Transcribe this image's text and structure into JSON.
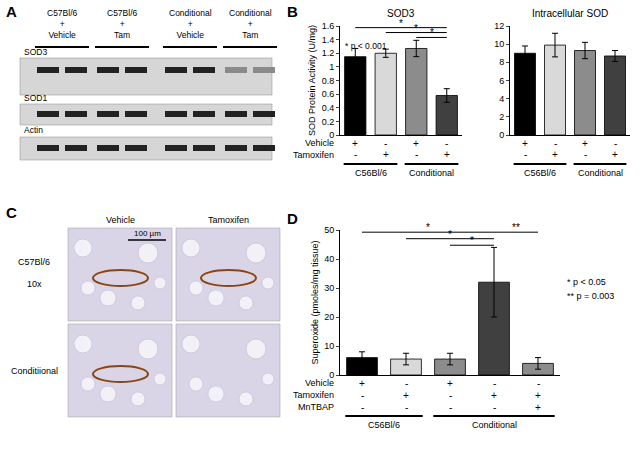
{
  "panel_labels": [
    "A",
    "B",
    "C",
    "D"
  ],
  "blot": {
    "lanes": [
      [
        "C57Bl/6",
        "+",
        "Vehicle"
      ],
      [
        "C57Bl/6",
        "+",
        "Tam"
      ],
      [
        "Conditional",
        "+",
        "Vehicle"
      ],
      [
        "Conditional",
        "+",
        "Tam"
      ]
    ],
    "bands": [
      "SOD3",
      "SOD1",
      "Actin"
    ]
  },
  "histology": {
    "columns": [
      "Vehicle",
      "Tamoxifen"
    ],
    "rows": [
      "C57Bl/6",
      "Conditiional"
    ],
    "magnification": "10x",
    "scale_bar": "100 µm"
  },
  "chart_data": [
    {
      "type": "bar",
      "title": "SOD3",
      "y_label": "SOD Protein Activity (U/mg)",
      "categories": [
        null,
        null,
        null,
        null
      ],
      "values": [
        1.15,
        1.2,
        1.27,
        0.58
      ],
      "errors": [
        0.12,
        0.06,
        0.12,
        0.1
      ],
      "colors": [
        "#000000",
        "#d9d9d9",
        "#8c8c8c",
        "#404040"
      ],
      "ylim": [
        0,
        1.6
      ],
      "yticks": [
        0,
        0.2,
        0.4,
        0.6,
        0.8,
        1,
        1.2,
        1.4,
        1.6
      ],
      "grid": false,
      "tick_labels": "y",
      "treatments": [
        {
          "name": "Vehicle",
          "signs": [
            "+",
            "-",
            "+",
            "-"
          ]
        },
        {
          "name": "Tamoxifen",
          "signs": [
            "-",
            "+",
            "-",
            "+"
          ]
        }
      ],
      "groups": [
        {
          "label": "C56Bl/6",
          "span": [
            0,
            1
          ]
        },
        {
          "label": "Conditional",
          "span": [
            2,
            3
          ]
        }
      ],
      "annotations": [
        "* p < 0.001"
      ],
      "comparisons": [
        {
          "from": 0,
          "to": 3,
          "label": "*"
        },
        {
          "from": 1,
          "to": 3,
          "label": "*"
        },
        {
          "from": 2,
          "to": 3,
          "label": "*"
        }
      ]
    },
    {
      "type": "bar",
      "title": "Intracellular SOD",
      "categories": [
        null,
        null,
        null,
        null
      ],
      "values": [
        9.0,
        9.9,
        9.3,
        8.7
      ],
      "errors": [
        0.8,
        1.3,
        0.9,
        0.6
      ],
      "colors": [
        "#000000",
        "#d9d9d9",
        "#8c8c8c",
        "#404040"
      ],
      "ylim": [
        0,
        12
      ],
      "yticks": [
        0,
        2,
        4,
        6,
        8,
        10,
        12
      ],
      "grid": false,
      "tick_labels": "y",
      "treatments": [
        {
          "signs": [
            "+",
            "-",
            "+",
            "-"
          ]
        },
        {
          "signs": [
            "-",
            "+",
            "-",
            "+"
          ]
        }
      ],
      "groups": [
        {
          "label": "C56Bl/6",
          "span": [
            0,
            1
          ]
        },
        {
          "label": "Conditional",
          "span": [
            2,
            3
          ]
        }
      ]
    },
    {
      "type": "bar",
      "y_label": "Superoxide (pmoles/mg tissue)",
      "categories": [
        null,
        null,
        null,
        null,
        null
      ],
      "values": [
        6,
        5.5,
        5.5,
        32,
        4
      ],
      "errors": [
        2,
        2,
        2,
        12,
        2
      ],
      "colors": [
        "#000000",
        "#d9d9d9",
        "#8c8c8c",
        "#404040",
        "#8c8c8c"
      ],
      "ylim": [
        0,
        50
      ],
      "yticks": [
        0,
        10,
        20,
        30,
        40,
        50
      ],
      "grid": false,
      "tick_labels": "y",
      "treatments": [
        {
          "name": "Vehicle",
          "signs": [
            "+",
            "-",
            "+",
            "-",
            "-"
          ]
        },
        {
          "name": "Tamoxifen",
          "signs": [
            "-",
            "+",
            "-",
            "+",
            "+"
          ]
        },
        {
          "name": "MnTBAP",
          "signs": [
            "-",
            "-",
            "-",
            "-",
            "+"
          ]
        }
      ],
      "groups": [
        {
          "label": "C56Bl/6",
          "span": [
            0,
            1
          ]
        },
        {
          "label": "Conditional",
          "span": [
            2,
            4
          ]
        }
      ],
      "annotations": [
        "* p < 0.05",
        "** p = 0.003"
      ],
      "comparisons": [
        {
          "from": 0,
          "to": 3,
          "label": "*"
        },
        {
          "from": 1,
          "to": 3,
          "label": "*"
        },
        {
          "from": 2,
          "to": 3,
          "label": "*"
        },
        {
          "from": 3,
          "to": 4,
          "label": "**"
        }
      ]
    }
  ]
}
